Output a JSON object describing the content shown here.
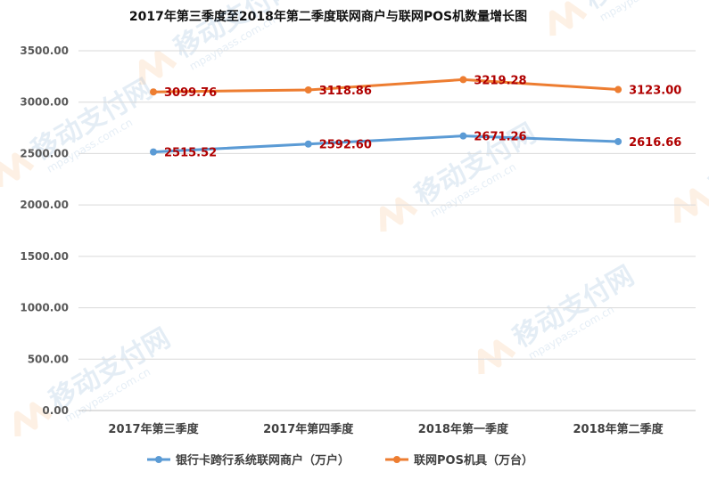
{
  "chart_data": {
    "type": "line",
    "title": "2017年第三季度至2018年第二季度联网商户与联网POS机数量增长图",
    "categories": [
      "2017年第三季度",
      "2017年第四季度",
      "2018年第一季度",
      "2018年第二季度"
    ],
    "series": [
      {
        "name": "银行卡跨行系统联网商户（万户）",
        "values": [
          2515.52,
          2592.6,
          2671.26,
          2616.66
        ],
        "labels": [
          "2515.52",
          "2592.60",
          "2671.26",
          "2616.66"
        ],
        "color": "#5b9bd5"
      },
      {
        "name": "联网POS机具（万台）",
        "values": [
          3099.76,
          3118.86,
          3219.28,
          3123.0
        ],
        "labels": [
          "3099.76",
          "3118.86",
          "3219.28",
          "3123.00"
        ],
        "color": "#ed7d31"
      }
    ],
    "ylim": [
      0,
      3500
    ],
    "yticks": [
      "0.00",
      "500.00",
      "1000.00",
      "1500.00",
      "2000.00",
      "2500.00",
      "3000.00",
      "3500.00"
    ],
    "ytick_values": [
      0,
      500,
      1000,
      1500,
      2000,
      2500,
      3000,
      3500
    ],
    "grid": true,
    "legend": "bottom",
    "data_label_color": "#b00000",
    "grid_color": "#d9d9d9"
  },
  "watermark": {
    "brand": "移动支付网",
    "url": "mpaypass.com.cn"
  }
}
